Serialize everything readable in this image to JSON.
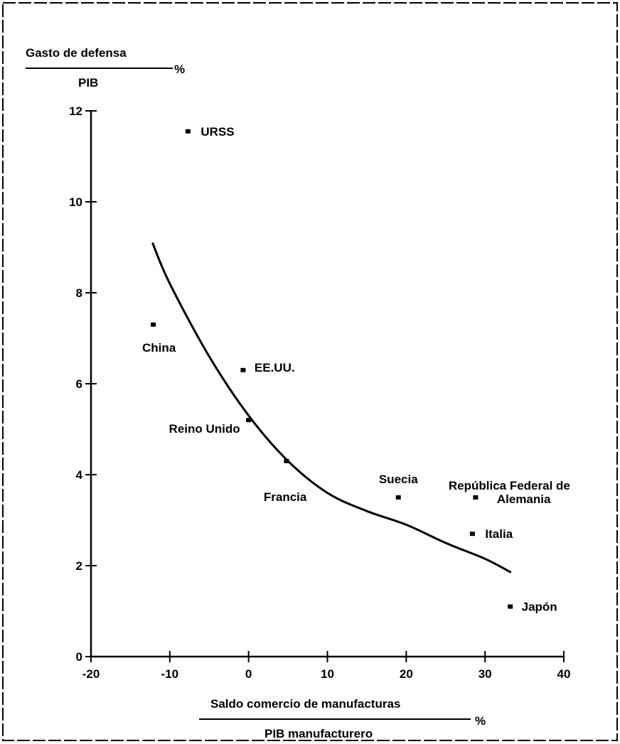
{
  "chart_data": {
    "type": "scatter",
    "y_title": {
      "numerator": "Gasto de defensa",
      "denominator": "PIB",
      "unit": "%"
    },
    "x_title": {
      "numerator": "Saldo comercio de manufacturas",
      "denominator": "PIB manufacturero",
      "unit": "%"
    },
    "xlim": [
      -20,
      40
    ],
    "ylim": [
      0,
      12
    ],
    "xticks": [
      -20,
      -10,
      0,
      10,
      20,
      30,
      40
    ],
    "yticks": [
      0,
      2,
      4,
      6,
      8,
      10,
      12
    ],
    "xtick_labels": [
      "-20",
      "-10",
      "0",
      "10",
      "20",
      "30",
      "40"
    ],
    "ytick_labels": [
      "0",
      "2",
      "4",
      "6",
      "8",
      "10",
      "12"
    ],
    "points": [
      {
        "label": "URSS",
        "x": -7.7,
        "y": 11.55
      },
      {
        "label": "China",
        "x": -12.1,
        "y": 7.3
      },
      {
        "label": "EE.UU.",
        "x": -0.7,
        "y": 6.3
      },
      {
        "label": "Reino Unido",
        "x": 0.0,
        "y": 5.2
      },
      {
        "label": "Francia",
        "x": 4.8,
        "y": 4.3
      },
      {
        "label": "Suecia",
        "x": 19.0,
        "y": 3.5
      },
      {
        "label": "República Federal de Alemania",
        "x": 28.8,
        "y": 3.5
      },
      {
        "label": "Italia",
        "x": 28.4,
        "y": 2.7
      },
      {
        "label": "Japón",
        "x": 33.2,
        "y": 1.1
      }
    ],
    "trend_line": {
      "x": [
        -12.2,
        -10,
        -5,
        0,
        5,
        10,
        15,
        20,
        25,
        30,
        33.3
      ],
      "y": [
        9.1,
        8.2,
        6.6,
        5.3,
        4.3,
        3.6,
        3.2,
        2.9,
        2.5,
        2.15,
        1.85
      ]
    },
    "grid": false,
    "legend": "none"
  }
}
